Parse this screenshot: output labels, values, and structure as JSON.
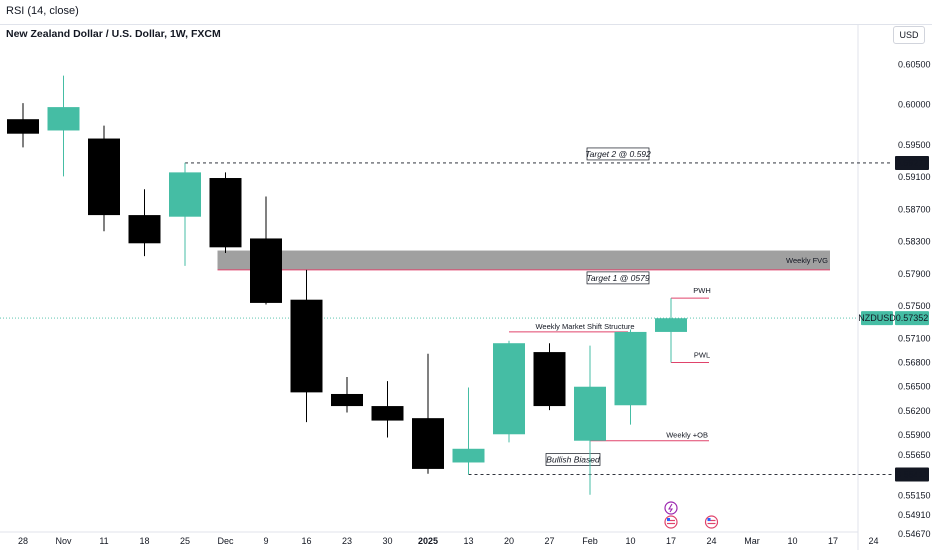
{
  "header": {
    "indicator": "RSI (14, close)",
    "symbol_title": "New Zealand Dollar / U.S. Dollar, 1W, FXCM",
    "currency": "USD"
  },
  "colors": {
    "bull": "#45bda4",
    "bear": "#000000",
    "fvg": "#9b9b9b",
    "annotation_line": "#e0436b",
    "price_line": "#45bda4"
  },
  "chart_data": {
    "type": "candlestick",
    "symbol": "NZDUSD",
    "timeframe": "1W",
    "x_tick_labels": [
      "28",
      "Nov",
      "11",
      "18",
      "25",
      "Dec",
      "9",
      "16",
      "23",
      "30",
      "2025",
      "13",
      "20",
      "27",
      "Feb",
      "10",
      "17",
      "24",
      "Mar",
      "10",
      "17",
      "24"
    ],
    "y_tick_labels": [
      "0.60500",
      "0.60000",
      "0.59500",
      "0.59100",
      "0.58700",
      "0.58300",
      "0.57900",
      "0.57500",
      "0.57100",
      "0.56800",
      "0.56500",
      "0.56200",
      "0.55900",
      "0.55650",
      "0.55150",
      "0.54910",
      "0.54670"
    ],
    "ylim": [
      0.5466,
      0.6084
    ],
    "candles": [
      {
        "x": "28",
        "open": 0.5982,
        "high": 0.6002,
        "low": 0.5947,
        "close": 0.5964
      },
      {
        "x": "Nov",
        "open": 0.5968,
        "high": 0.6036,
        "low": 0.5911,
        "close": 0.5997
      },
      {
        "x": "11",
        "open": 0.5958,
        "high": 0.5974,
        "low": 0.5843,
        "close": 0.5863
      },
      {
        "x": "18",
        "open": 0.5863,
        "high": 0.5895,
        "low": 0.5812,
        "close": 0.5828
      },
      {
        "x": "25",
        "open": 0.5861,
        "high": 0.5928,
        "low": 0.58,
        "close": 0.5916
      },
      {
        "x": "Dec",
        "open": 0.5909,
        "high": 0.5916,
        "low": 0.5816,
        "close": 0.5823
      },
      {
        "x": "9",
        "open": 0.5834,
        "high": 0.5886,
        "low": 0.5752,
        "close": 0.5754
      },
      {
        "x": "16",
        "open": 0.5758,
        "high": 0.5795,
        "low": 0.5606,
        "close": 0.5643
      },
      {
        "x": "23",
        "open": 0.5641,
        "high": 0.5662,
        "low": 0.5618,
        "close": 0.5626
      },
      {
        "x": "30",
        "open": 0.5626,
        "high": 0.5657,
        "low": 0.5587,
        "close": 0.5608
      },
      {
        "x": "2025",
        "open": 0.5611,
        "high": 0.5691,
        "low": 0.5542,
        "close": 0.5548
      },
      {
        "x": "13",
        "open": 0.5556,
        "high": 0.5649,
        "low": 0.5541,
        "close": 0.5573
      },
      {
        "x": "20",
        "open": 0.5591,
        "high": 0.5707,
        "low": 0.5581,
        "close": 0.5704
      },
      {
        "x": "27",
        "open": 0.5693,
        "high": 0.5704,
        "low": 0.5621,
        "close": 0.5626
      },
      {
        "x": "Feb",
        "open": 0.5583,
        "high": 0.5701,
        "low": 0.5516,
        "close": 0.565
      },
      {
        "x": "10",
        "open": 0.5627,
        "high": 0.5721,
        "low": 0.5603,
        "close": 0.5718
      },
      {
        "x": "17",
        "open": 0.5718,
        "high": 0.576,
        "low": 0.568,
        "close": 0.5735
      }
    ],
    "zones": [
      {
        "label": "Weekly FVG",
        "from_x": "Dec",
        "y_low": 0.5795,
        "y_high": 0.5819
      }
    ],
    "levels": [
      {
        "label": "Target 2 @ 0.592",
        "value": 0.59277,
        "style": "dashed",
        "from_x": "25"
      },
      {
        "label": "Target 1 @ 0579",
        "value": 0.5795,
        "style": "solid",
        "from_x": "Dec"
      },
      {
        "label": "PWH",
        "value": 0.576,
        "style": "solid",
        "from_x": "17"
      },
      {
        "label": "Weekly Market Shift Structure",
        "value": 0.5718,
        "style": "solid",
        "from_x": "20"
      },
      {
        "label": "PWL",
        "value": 0.568,
        "style": "solid",
        "from_x": "17"
      },
      {
        "label": "Weekly +OB",
        "value": 0.5583,
        "style": "solid",
        "from_x": "Feb"
      },
      {
        "label": "Bullish Biased",
        "value": 0.55411,
        "style": "dashed",
        "from_x": "13"
      }
    ],
    "price_badges": [
      {
        "label": "0.59277",
        "value": 0.59277,
        "style": "dark"
      },
      {
        "label": "0.57352",
        "value": 0.57352,
        "style": "green",
        "symbol": "NZDUSD"
      },
      {
        "label": "0.55411",
        "value": 0.55411,
        "style": "dark"
      }
    ],
    "events": [
      {
        "x": "17",
        "icons": [
          "flash-icon",
          "us-flag-icon"
        ]
      },
      {
        "x": "24",
        "icons": [
          "us-flag-icon"
        ]
      }
    ]
  }
}
